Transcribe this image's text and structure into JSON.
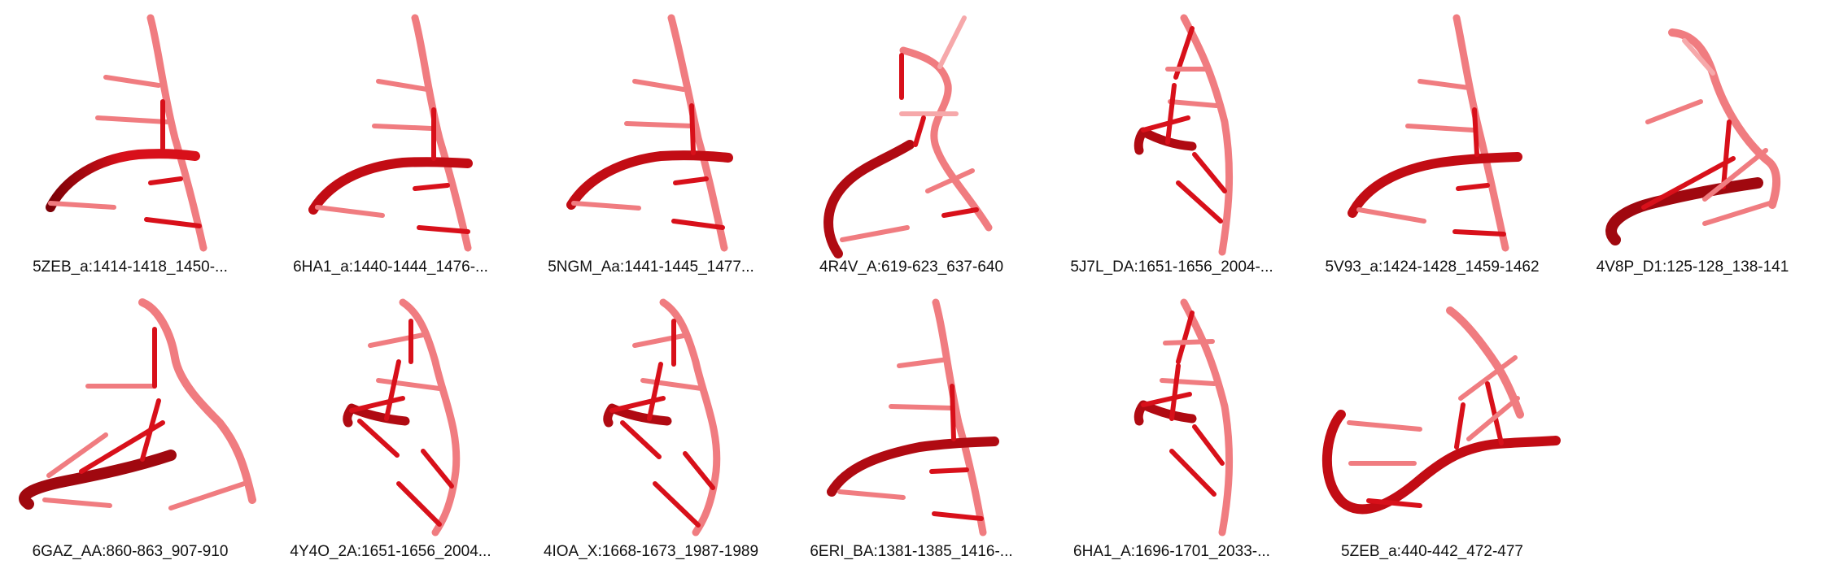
{
  "colors": {
    "dark": "#7a0006",
    "mid": "#d8101a",
    "light": "#f07c80",
    "pale": "#f6a8aa"
  },
  "panels": [
    {
      "caption": "5ZEB_a:1414-1418_1450-..."
    },
    {
      "caption": "6HA1_a:1440-1444_1476-..."
    },
    {
      "caption": "5NGM_Aa:1441-1445_1477..."
    },
    {
      "caption": "4R4V_A:619-623_637-640"
    },
    {
      "caption": "5J7L_DA:1651-1656_2004-..."
    },
    {
      "caption": "5V93_a:1424-1428_1459-1462"
    },
    {
      "caption": "4V8P_D1:125-128_138-141"
    },
    {
      "caption": "6GAZ_AA:860-863_907-910"
    },
    {
      "caption": "4Y4O_2A:1651-1656_2004..."
    },
    {
      "caption": "4IOA_X:1668-1673_1987-1989"
    },
    {
      "caption": "6ERI_BA:1381-1385_1416-..."
    },
    {
      "caption": "6HA1_A:1696-1701_2033-..."
    },
    {
      "caption": "5ZEB_a:440-442_472-477"
    }
  ]
}
